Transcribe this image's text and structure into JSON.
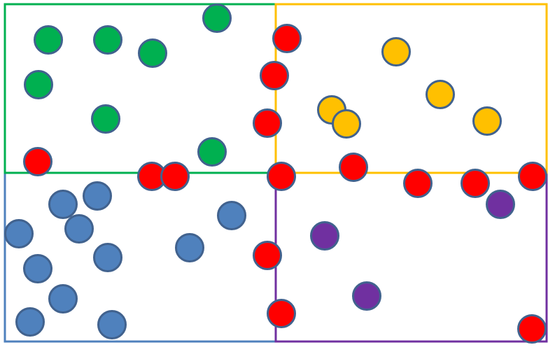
{
  "colors": {
    "green": "#00b050",
    "orange": "#ffc000",
    "blue": "#4f81bd",
    "purple": "#7030a0",
    "red": "#ff0000",
    "dot_outline": "#41628e"
  },
  "regions": [
    {
      "name": "green-region",
      "color": "green"
    },
    {
      "name": "orange-region",
      "color": "orange"
    },
    {
      "name": "blue-region",
      "color": "blue"
    },
    {
      "name": "purple-region",
      "color": "purple"
    }
  ],
  "points": [
    {
      "color": "green"
    },
    {
      "color": "green"
    },
    {
      "color": "green"
    },
    {
      "color": "green"
    },
    {
      "color": "green"
    },
    {
      "color": "green"
    },
    {
      "color": "green"
    },
    {
      "color": "orange"
    },
    {
      "color": "orange"
    },
    {
      "color": "orange"
    },
    {
      "color": "orange"
    },
    {
      "color": "orange"
    },
    {
      "color": "blue"
    },
    {
      "color": "blue"
    },
    {
      "color": "blue"
    },
    {
      "color": "blue"
    },
    {
      "color": "blue"
    },
    {
      "color": "blue"
    },
    {
      "color": "blue"
    },
    {
      "color": "blue"
    },
    {
      "color": "blue"
    },
    {
      "color": "blue"
    },
    {
      "color": "blue"
    },
    {
      "color": "purple"
    },
    {
      "color": "purple"
    },
    {
      "color": "purple"
    },
    {
      "color": "red"
    },
    {
      "color": "red"
    },
    {
      "color": "red"
    },
    {
      "color": "red"
    },
    {
      "color": "red"
    },
    {
      "color": "red"
    },
    {
      "color": "red"
    },
    {
      "color": "red"
    },
    {
      "color": "red"
    },
    {
      "color": "red"
    },
    {
      "color": "red"
    },
    {
      "color": "red"
    },
    {
      "color": "red"
    },
    {
      "color": "red"
    },
    {
      "color": "red"
    },
    {
      "color": "red"
    }
  ]
}
